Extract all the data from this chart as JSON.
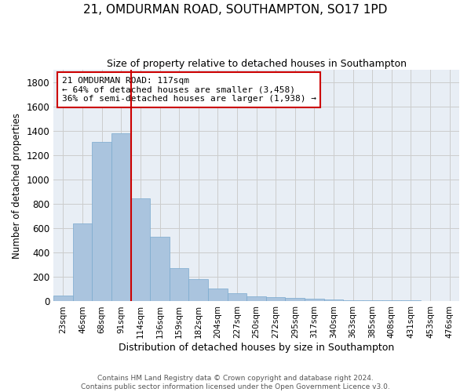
{
  "title": "21, OMDURMAN ROAD, SOUTHAMPTON, SO17 1PD",
  "subtitle": "Size of property relative to detached houses in Southampton",
  "xlabel": "Distribution of detached houses by size in Southampton",
  "ylabel": "Number of detached properties",
  "bin_labels": [
    "23sqm",
    "46sqm",
    "68sqm",
    "91sqm",
    "114sqm",
    "136sqm",
    "159sqm",
    "182sqm",
    "204sqm",
    "227sqm",
    "250sqm",
    "272sqm",
    "295sqm",
    "317sqm",
    "340sqm",
    "363sqm",
    "385sqm",
    "408sqm",
    "431sqm",
    "453sqm",
    "476sqm"
  ],
  "bar_values": [
    50,
    640,
    1310,
    1380,
    845,
    530,
    275,
    185,
    105,
    65,
    40,
    38,
    30,
    22,
    15,
    12,
    12,
    12,
    8,
    5,
    5
  ],
  "bar_color": "#aac4de",
  "bar_edgecolor": "#7aaace",
  "vline_color": "#cc0000",
  "annotation_text": "21 OMDURMAN ROAD: 117sqm\n← 64% of detached houses are smaller (3,458)\n36% of semi-detached houses are larger (1,938) →",
  "annotation_box_color": "#ffffff",
  "annotation_box_edgecolor": "#cc0000",
  "ylim": [
    0,
    1900
  ],
  "yticks": [
    0,
    200,
    400,
    600,
    800,
    1000,
    1200,
    1400,
    1600,
    1800
  ],
  "grid_color": "#cccccc",
  "background_color": "#e8eef5",
  "footer_line1": "Contains HM Land Registry data © Crown copyright and database right 2024.",
  "footer_line2": "Contains public sector information licensed under the Open Government Licence v3.0."
}
